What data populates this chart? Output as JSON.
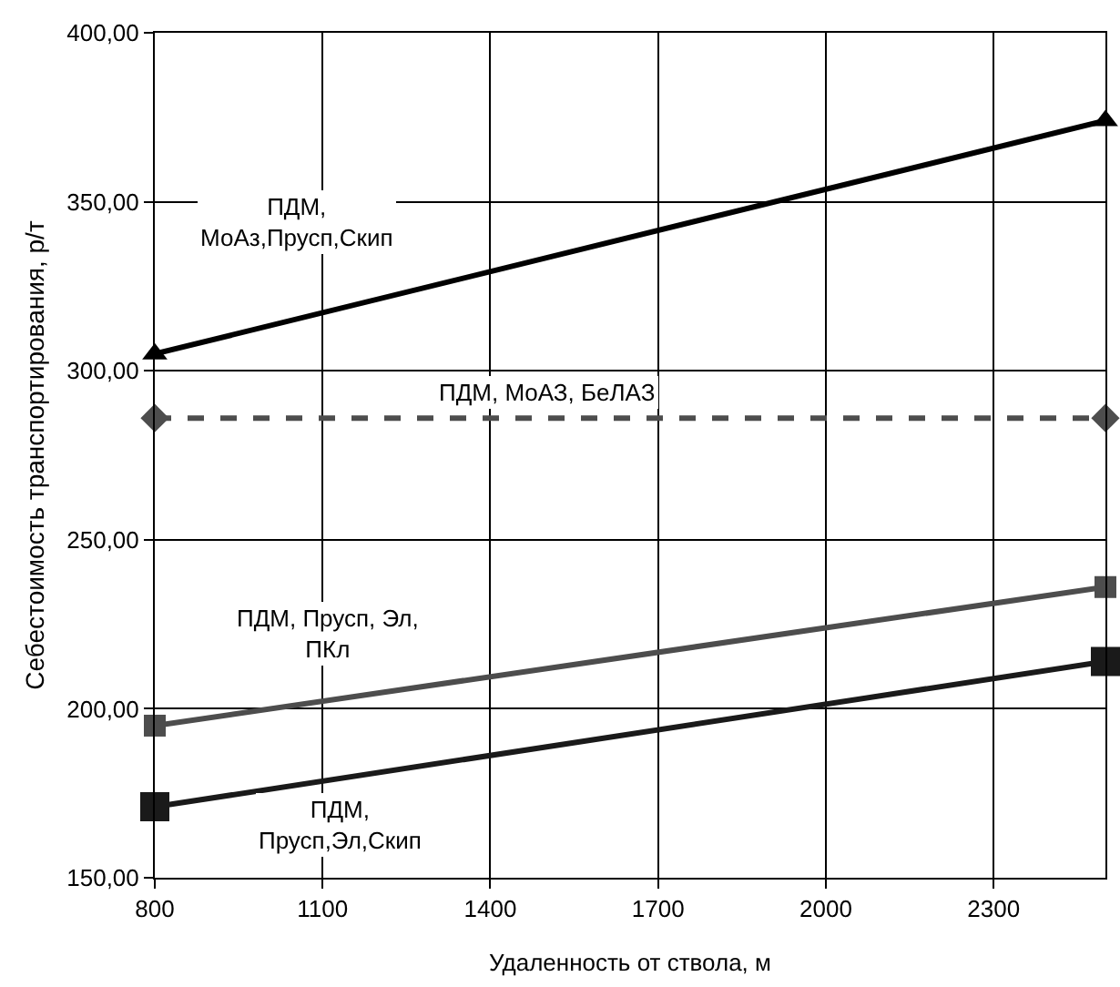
{
  "chart_data": {
    "type": "line",
    "xlabel": "Удаленность от ствола, м",
    "ylabel": "Себестоимость транспортирования, р/т",
    "x": [
      800,
      2500
    ],
    "series": [
      {
        "name": "ПДМ,\nМоАз,Прусп,Скип",
        "color": "#000000",
        "values": [
          305,
          374
        ],
        "marker": "triangle",
        "line_style": "solid"
      },
      {
        "name": "ПДМ, МоАЗ, БеЛАЗ",
        "color": "#4d4d4d",
        "values": [
          286,
          286
        ],
        "marker": "diamond",
        "line_style": "dashed"
      },
      {
        "name": "ПДМ, Прусп, Эл,\nПКл",
        "color": "#4d4d4d",
        "values": [
          195,
          236
        ],
        "marker": "square",
        "line_style": "solid"
      },
      {
        "name": "ПДМ,\nПрусп,Эл,Скип",
        "color": "#1a1a1a",
        "values": [
          171,
          214
        ],
        "marker": "square",
        "line_style": "solid"
      }
    ],
    "xlim": [
      800,
      2500
    ],
    "xticks": [
      800,
      1100,
      1400,
      1700,
      2000,
      2300
    ],
    "ylim": [
      150,
      400
    ],
    "yticks": [
      {
        "value": 150,
        "label": "150,00"
      },
      {
        "value": 200,
        "label": "200,00"
      },
      {
        "value": 250,
        "label": "250,00"
      },
      {
        "value": 300,
        "label": "300,00"
      },
      {
        "value": 350,
        "label": "350,00"
      },
      {
        "value": 400,
        "label": "400,00"
      }
    ],
    "grid": true,
    "legend": false
  }
}
